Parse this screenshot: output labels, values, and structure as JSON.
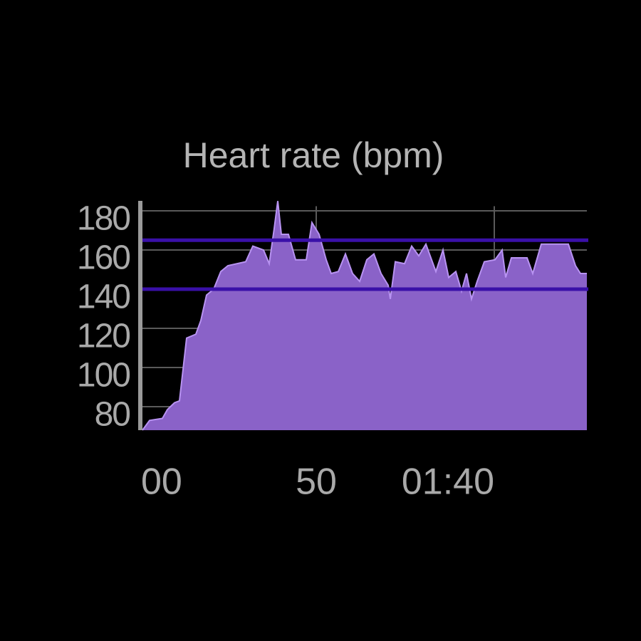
{
  "chart_data": {
    "type": "area",
    "title": "Heart rate (bpm)",
    "x": [
      1.2,
      3.2,
      6.8,
      8.2,
      10.2,
      11.6,
      13.6,
      16.2,
      17.6,
      19.2,
      21.2,
      23.2,
      25.2,
      30.2,
      32.2,
      35.2,
      36.8,
      38.2,
      39.2,
      40.2,
      42.2,
      44.2,
      47.2,
      48.8,
      50.8,
      52.8,
      54.2,
      56.2,
      58.2,
      60.2,
      62.2,
      64.2,
      66.2,
      68.2,
      70.2,
      70.8,
      72.2,
      74.8,
      76.8,
      78.8,
      80.8,
      83.6,
      85.6,
      87.2,
      89.2,
      90.8,
      92.2,
      93.6,
      95.2,
      97.2,
      100.2,
      102.2,
      103.2,
      104.8,
      109.2,
      110.8,
      113.2,
      120.8,
      122.8,
      124.2,
      126
    ],
    "values": [
      68,
      73,
      74,
      78.5,
      82,
      83,
      115,
      117,
      124,
      137,
      140,
      149,
      152,
      154,
      162,
      160,
      153,
      171,
      185,
      168,
      168,
      155,
      155,
      174,
      168,
      155,
      148,
      149,
      158,
      148,
      144,
      155,
      158,
      148,
      142,
      135,
      154,
      153,
      162,
      157,
      163,
      149,
      160,
      146,
      149,
      139,
      148,
      135,
      144,
      154,
      155,
      160,
      146,
      156,
      156,
      148,
      163,
      163,
      152,
      148,
      148
    ],
    "color": "#8a62c8",
    "line_color": "#b893f2",
    "thresholds": [
      165,
      140
    ],
    "threshold_color": "#3a10a8",
    "xlim": [
      0,
      126
    ],
    "ylim": [
      68,
      186
    ],
    "xticks": [
      {
        "value": 0,
        "label": "00"
      },
      {
        "value": 50,
        "label": "50"
      },
      {
        "value": 100,
        "label": "01:40"
      }
    ],
    "yticks": [
      80,
      100,
      120,
      140,
      160,
      180
    ],
    "grid": true
  }
}
